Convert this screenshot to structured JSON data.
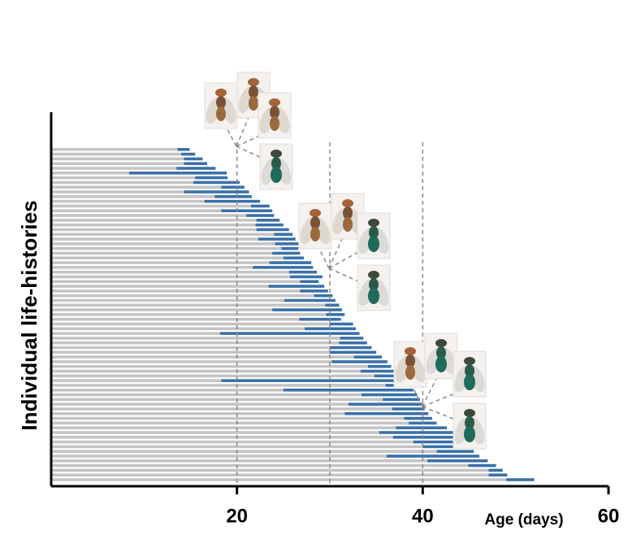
{
  "chart_data": {
    "type": "stacked-barh",
    "x_label": "Age (days)",
    "y_label": "Individual life-histories",
    "xlim": [
      0,
      60
    ],
    "xticks": [
      20,
      40,
      60
    ],
    "ref_lines": [
      20,
      30,
      40
    ],
    "series": [
      {
        "color": "#c4c4c4",
        "values": [
          13.6,
          14.0,
          14.3,
          14.3,
          13.5,
          8.4,
          15.5,
          15.3,
          18.3,
          14.3,
          17.6,
          16.5,
          21.5,
          18.3,
          21.0,
          22.1,
          22.0,
          22.1,
          24.0,
          22.3,
          24.1,
          24.8,
          23.8,
          25.0,
          23.5,
          21.7,
          25.6,
          25.7,
          26.8,
          23.4,
          26.8,
          28.3,
          25.1,
          29.5,
          23.8,
          29.6,
          26.7,
          30.0,
          27.3,
          18.2,
          31.1,
          31.0,
          30.0,
          30.0,
          32.6,
          30.2,
          34.1,
          33.3,
          34.8,
          18.3,
          36.0,
          25.0,
          33.4,
          35.7,
          32.0,
          36.7,
          31.6,
          38.0,
          38.5,
          37.1,
          35.3,
          36.8,
          39.0,
          40.0,
          41.5,
          36.1,
          40.5,
          44.9,
          47.1,
          47.1,
          49.0
        ]
      },
      {
        "color": "#3a70a8",
        "values": [
          1.3,
          1.5,
          2.0,
          2.5,
          4.2,
          10.5,
          3.5,
          5.0,
          2.5,
          7.0,
          4.0,
          6.0,
          2.0,
          5.5,
          3.0,
          2.5,
          3.0,
          3.5,
          2.0,
          4.0,
          2.5,
          1.8,
          3.0,
          2.2,
          4.5,
          6.5,
          3.0,
          3.5,
          2.0,
          6.0,
          3.0,
          2.0,
          5.5,
          1.5,
          7.5,
          2.0,
          4.5,
          2.5,
          5.5,
          15.0,
          2.5,
          3.0,
          4.5,
          5.0,
          3.0,
          6.0,
          2.5,
          4.0,
          3.0,
          20.0,
          2.5,
          14.0,
          6.0,
          4.0,
          8.0,
          3.5,
          9.0,
          3.0,
          3.0,
          5.5,
          8.0,
          7.0,
          5.5,
          5.0,
          4.0,
          10.0,
          6.5,
          3.0,
          1.5,
          2.0,
          3.0
        ]
      }
    ]
  }
}
